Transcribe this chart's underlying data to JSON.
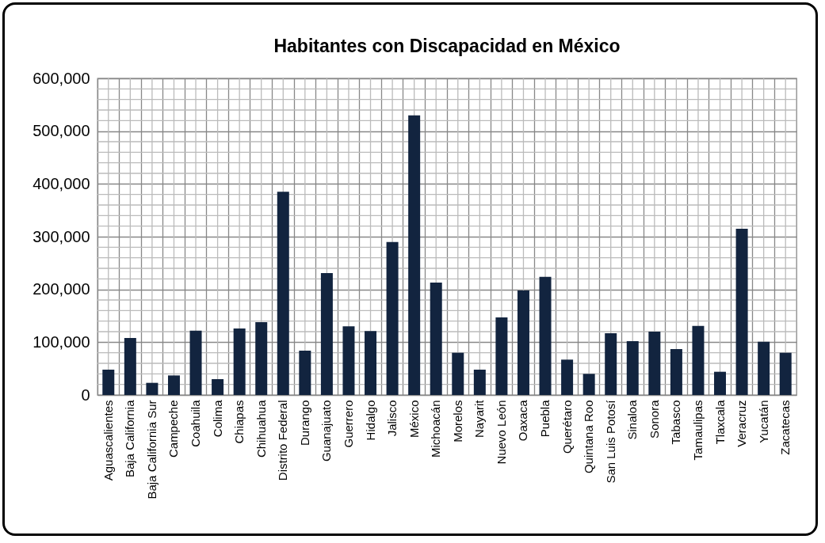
{
  "chart_data": {
    "type": "bar",
    "title": "Habitantes con Discapacidad en México",
    "categories": [
      "Aguascalientes",
      "Baja California",
      "Baja California Sur",
      "Campeche",
      "Coahuila",
      "Colima",
      "Chiapas",
      "Chihuahua",
      "Distrito Federal",
      "Durango",
      "Guanajuato",
      "Guerrero",
      "Hidalgo",
      "Jalisco",
      "México",
      "Michoacán",
      "Morelos",
      "Nayarit",
      "Nuevo León",
      "Oaxaca",
      "Puebla",
      "Querétaro",
      "Quintana Roo",
      "San Luis Potosí",
      "Sinaloa",
      "Sonora",
      "Tabasco",
      "Tamaulipas",
      "Tlaxcala",
      "Veracruz",
      "Yucatán",
      "Zacatecas"
    ],
    "values": [
      48000,
      108000,
      23000,
      37000,
      122000,
      30000,
      126000,
      138000,
      385000,
      84000,
      231000,
      130000,
      121000,
      290000,
      530000,
      213000,
      80000,
      48000,
      147000,
      198000,
      224000,
      67000,
      40000,
      117000,
      102000,
      120000,
      87000,
      131000,
      44000,
      315000,
      101000,
      80000
    ],
    "color": "#12243f",
    "ylim": [
      0,
      600000
    ],
    "yticks": [
      0,
      {
        "value": 100000,
        "label": "100,000"
      },
      {
        "value": 200000,
        "label": "200,000"
      },
      {
        "value": 300000,
        "label": "300,000"
      },
      {
        "value": 400000,
        "label": "400,000"
      },
      {
        "value": 500000,
        "label": "500,000"
      },
      {
        "value": 600000,
        "label": "600,000"
      }
    ],
    "grid": true
  }
}
